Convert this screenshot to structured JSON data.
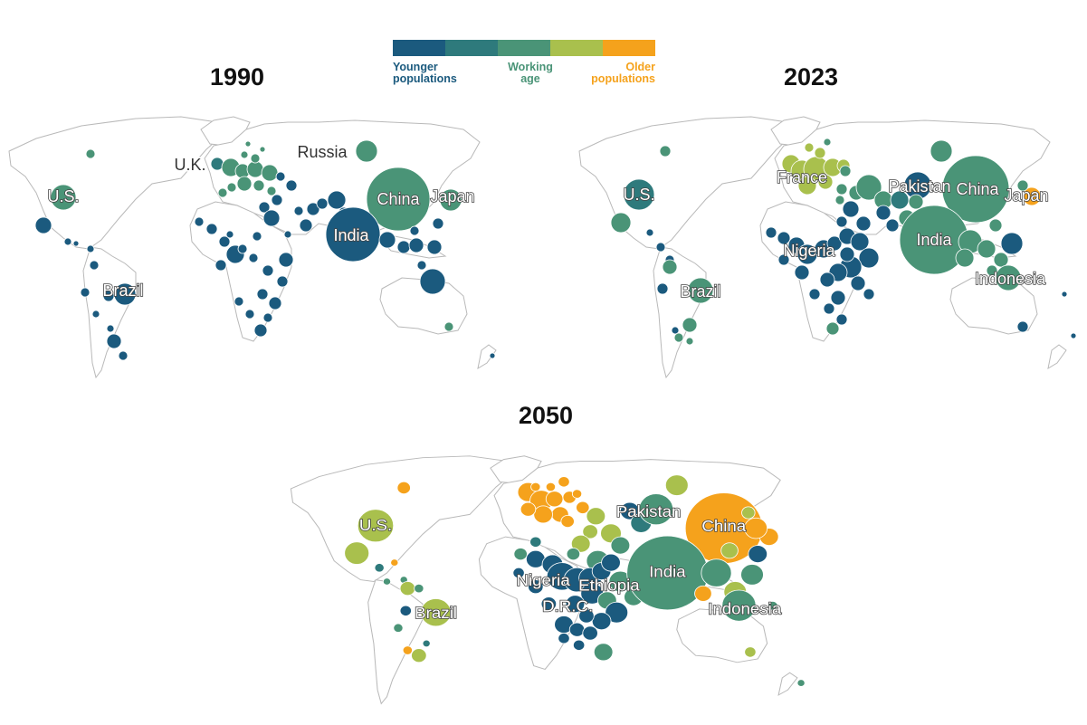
{
  "legend": {
    "colors": [
      "#1b5a7e",
      "#2e7a7c",
      "#4a9477",
      "#a9c04d",
      "#f5a21c"
    ],
    "younger": [
      "Younger",
      "populations"
    ],
    "working": [
      "Working",
      "age"
    ],
    "older": [
      "Older",
      "populations"
    ]
  },
  "maps": [
    {
      "year": "1990",
      "labels": [
        {
          "text": "U.S.",
          "dark": false
        },
        {
          "text": "U.K.",
          "dark": true
        },
        {
          "text": "Russia",
          "dark": true
        },
        {
          "text": "China",
          "dark": false
        },
        {
          "text": "Japan",
          "dark": false
        },
        {
          "text": "India",
          "dark": false
        },
        {
          "text": "Brazil",
          "dark": false
        }
      ]
    },
    {
      "year": "2023",
      "labels": [
        {
          "text": "U.S.",
          "dark": false
        },
        {
          "text": "France",
          "dark": false
        },
        {
          "text": "Pakistan",
          "dark": false
        },
        {
          "text": "China",
          "dark": false
        },
        {
          "text": "Japan",
          "dark": false
        },
        {
          "text": "Nigeria",
          "dark": false
        },
        {
          "text": "India",
          "dark": false
        },
        {
          "text": "Indonesia",
          "dark": false
        },
        {
          "text": "Brazil",
          "dark": false
        }
      ]
    },
    {
      "year": "2050",
      "labels": [
        {
          "text": "U.S.",
          "dark": false
        },
        {
          "text": "Pakistan",
          "dark": false
        },
        {
          "text": "China",
          "dark": false
        },
        {
          "text": "Nigeria",
          "dark": false
        },
        {
          "text": "Ethiopia",
          "dark": false
        },
        {
          "text": "India",
          "dark": false
        },
        {
          "text": "D.R.C.",
          "dark": false
        },
        {
          "text": "Indonesia",
          "dark": false
        },
        {
          "text": "Brazil",
          "dark": false
        }
      ]
    }
  ]
}
